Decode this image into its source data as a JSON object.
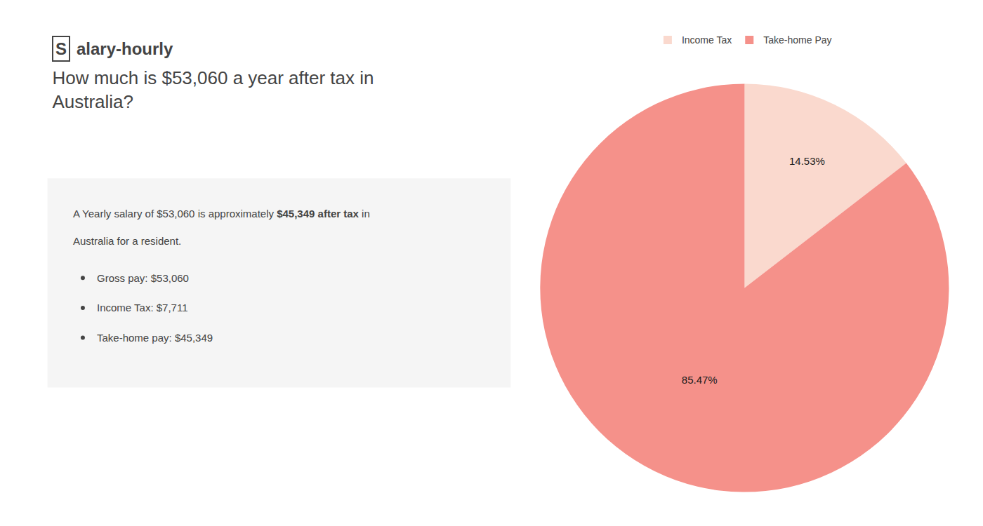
{
  "chart_data": {
    "type": "pie",
    "title": "How much is $53,060 a year after tax in\nAustralia?",
    "annotations": [
      "S",
      "alary-hourly",
      "A Yearly salary of $53,060 is approximately ",
      "$45,349 after tax",
      " in",
      "Australia for a resident.",
      "Gross pay: $53,060",
      "Income Tax: $7,711",
      "Take-home pay: $45,349"
    ],
    "categories": [
      "Income Tax",
      "Take-home Pay"
    ],
    "values": [
      14.53,
      85.47
    ],
    "value_labels": [
      "14.53%",
      "85.47%"
    ],
    "data_labels": true,
    "colors": [
      "#fad9ce",
      "#f5918a"
    ],
    "legend": "top"
  }
}
